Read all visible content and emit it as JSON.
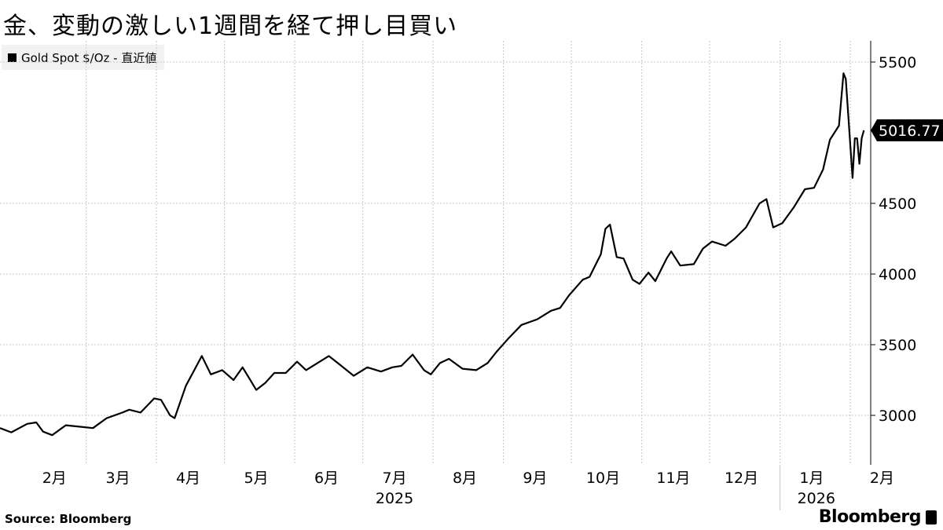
{
  "title": "金、変動の激しい1週間を経て押し目買い",
  "source": "Source:  Bloomberg",
  "brand": "Bloomberg",
  "chart_data": {
    "type": "line",
    "legend": [
      {
        "label": "Gold Spot $/Oz - 直近値",
        "color": "#000000"
      }
    ],
    "series": [
      {
        "name": "Gold Spot $/Oz - 直近値",
        "color": "#000000",
        "points": [
          [
            "2025-01-22",
            2910
          ],
          [
            "2025-01-27",
            2880
          ],
          [
            "2025-02-03",
            2940
          ],
          [
            "2025-02-07",
            2950
          ],
          [
            "2025-02-10",
            2885
          ],
          [
            "2025-02-14",
            2860
          ],
          [
            "2025-02-20",
            2930
          ],
          [
            "2025-02-26",
            2920
          ],
          [
            "2025-03-04",
            2910
          ],
          [
            "2025-03-10",
            2980
          ],
          [
            "2025-03-17",
            3020
          ],
          [
            "2025-03-20",
            3040
          ],
          [
            "2025-03-25",
            3020
          ],
          [
            "2025-03-31",
            3120
          ],
          [
            "2025-04-03",
            3110
          ],
          [
            "2025-04-07",
            3000
          ],
          [
            "2025-04-09",
            2980
          ],
          [
            "2025-04-14",
            3210
          ],
          [
            "2025-04-17",
            3300
          ],
          [
            "2025-04-21",
            3420
          ],
          [
            "2025-04-25",
            3290
          ],
          [
            "2025-04-30",
            3320
          ],
          [
            "2025-05-05",
            3250
          ],
          [
            "2025-05-09",
            3340
          ],
          [
            "2025-05-12",
            3260
          ],
          [
            "2025-05-15",
            3180
          ],
          [
            "2025-05-19",
            3230
          ],
          [
            "2025-05-23",
            3300
          ],
          [
            "2025-05-28",
            3300
          ],
          [
            "2025-06-02",
            3380
          ],
          [
            "2025-06-06",
            3320
          ],
          [
            "2025-06-10",
            3360
          ],
          [
            "2025-06-16",
            3420
          ],
          [
            "2025-06-20",
            3370
          ],
          [
            "2025-06-27",
            3280
          ],
          [
            "2025-07-03",
            3340
          ],
          [
            "2025-07-09",
            3310
          ],
          [
            "2025-07-14",
            3340
          ],
          [
            "2025-07-18",
            3350
          ],
          [
            "2025-07-23",
            3430
          ],
          [
            "2025-07-28",
            3320
          ],
          [
            "2025-07-31",
            3290
          ],
          [
            "2025-08-04",
            3370
          ],
          [
            "2025-08-08",
            3400
          ],
          [
            "2025-08-14",
            3330
          ],
          [
            "2025-08-20",
            3320
          ],
          [
            "2025-08-25",
            3370
          ],
          [
            "2025-08-29",
            3450
          ],
          [
            "2025-09-03",
            3540
          ],
          [
            "2025-09-09",
            3640
          ],
          [
            "2025-09-16",
            3680
          ],
          [
            "2025-09-22",
            3740
          ],
          [
            "2025-09-26",
            3760
          ],
          [
            "2025-09-30",
            3850
          ],
          [
            "2025-10-06",
            3960
          ],
          [
            "2025-10-09",
            3980
          ],
          [
            "2025-10-14",
            4140
          ],
          [
            "2025-10-16",
            4320
          ],
          [
            "2025-10-18",
            4350
          ],
          [
            "2025-10-21",
            4120
          ],
          [
            "2025-10-24",
            4110
          ],
          [
            "2025-10-28",
            3960
          ],
          [
            "2025-10-31",
            3930
          ],
          [
            "2025-11-04",
            4010
          ],
          [
            "2025-11-07",
            3950
          ],
          [
            "2025-11-12",
            4110
          ],
          [
            "2025-11-14",
            4160
          ],
          [
            "2025-11-18",
            4060
          ],
          [
            "2025-11-24",
            4070
          ],
          [
            "2025-11-28",
            4180
          ],
          [
            "2025-12-02",
            4230
          ],
          [
            "2025-12-08",
            4200
          ],
          [
            "2025-12-12",
            4250
          ],
          [
            "2025-12-17",
            4330
          ],
          [
            "2025-12-23",
            4500
          ],
          [
            "2025-12-26",
            4530
          ],
          [
            "2025-12-29",
            4330
          ],
          [
            "2026-01-02",
            4360
          ],
          [
            "2026-01-07",
            4470
          ],
          [
            "2026-01-12",
            4600
          ],
          [
            "2026-01-16",
            4610
          ],
          [
            "2026-01-20",
            4740
          ],
          [
            "2026-01-23",
            4950
          ],
          [
            "2026-01-27",
            5050
          ],
          [
            "2026-01-29",
            5420
          ],
          [
            "2026-01-30",
            5380
          ],
          [
            "2026-02-02",
            4680
          ],
          [
            "2026-02-03",
            4960
          ],
          [
            "2026-02-04",
            4960
          ],
          [
            "2026-02-05",
            4780
          ],
          [
            "2026-02-06",
            4960
          ],
          [
            "2026-02-07",
            5016.77
          ]
        ]
      }
    ],
    "last_value_label": "5016.77",
    "x_axis": {
      "range": [
        "2025-01-22",
        "2026-02-10"
      ],
      "month_ticks": [
        {
          "label": "2月",
          "date": "2025-02-15"
        },
        {
          "label": "3月",
          "date": "2025-03-15"
        },
        {
          "label": "4月",
          "date": "2025-04-15"
        },
        {
          "label": "5月",
          "date": "2025-05-15"
        },
        {
          "label": "6月",
          "date": "2025-06-15"
        },
        {
          "label": "7月",
          "date": "2025-07-15"
        },
        {
          "label": "8月",
          "date": "2025-08-15"
        },
        {
          "label": "9月",
          "date": "2025-09-15"
        },
        {
          "label": "10月",
          "date": "2025-10-15"
        },
        {
          "label": "11月",
          "date": "2025-11-15"
        },
        {
          "label": "12月",
          "date": "2025-12-15"
        },
        {
          "label": "1月",
          "date": "2026-01-15"
        },
        {
          "label": "2月",
          "date": "2026-02-15"
        }
      ],
      "gridlines": [
        "2025-03-01",
        "2025-04-01",
        "2025-05-01",
        "2025-06-01",
        "2025-07-01",
        "2025-08-01",
        "2025-09-01",
        "2025-10-01",
        "2025-11-01",
        "2025-12-01",
        "2026-01-01",
        "2026-02-01"
      ],
      "year_labels": [
        {
          "label": "2025",
          "date": "2025-07-15"
        },
        {
          "label": "2026",
          "date": "2026-01-17"
        }
      ],
      "year_divider": "2026-01-01"
    },
    "y_axis": {
      "position": "right",
      "range": [
        2650,
        5650
      ],
      "ticks": [
        3000,
        3500,
        4000,
        4500,
        5500
      ]
    },
    "grid": true,
    "legend_position": "top-left"
  }
}
